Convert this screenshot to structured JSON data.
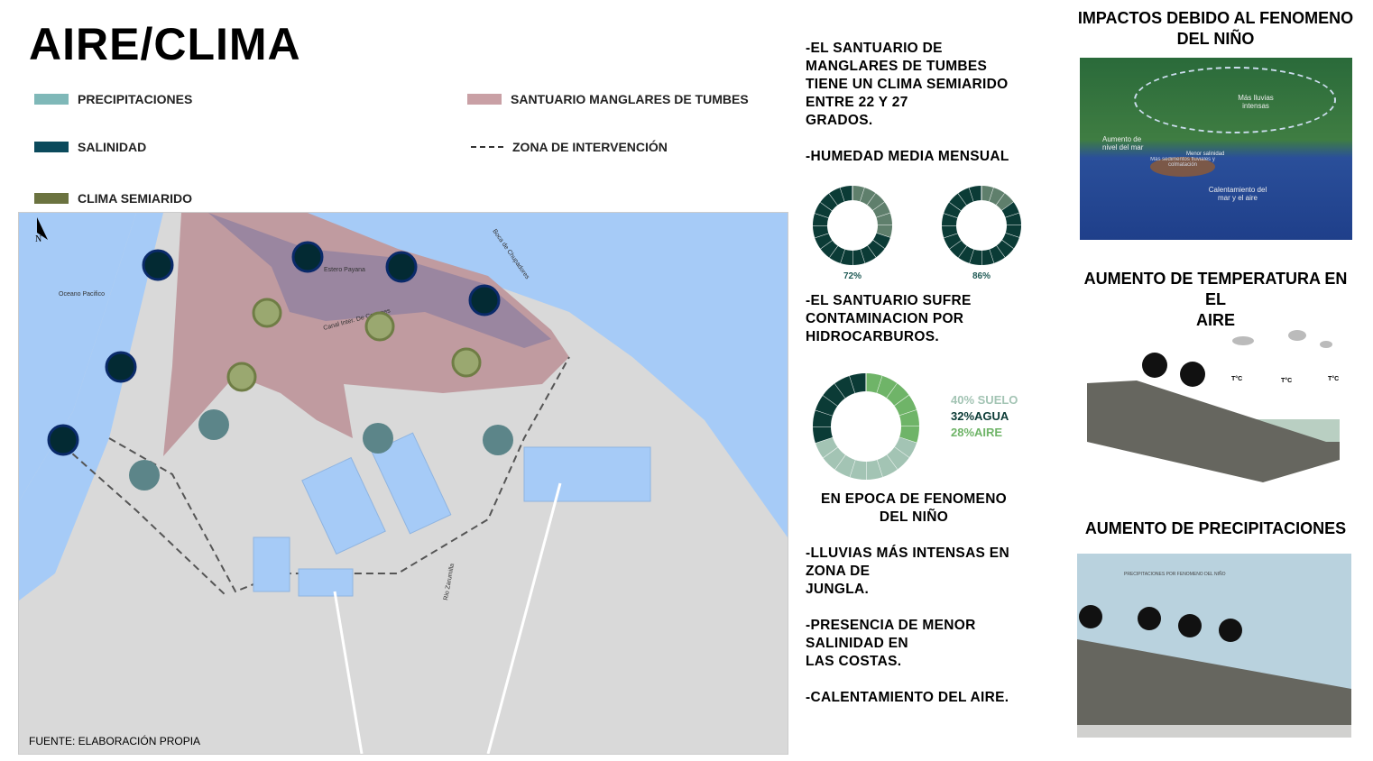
{
  "title": "AIRE/CLIMA",
  "legend": [
    {
      "label": "PRECIPITACIONES",
      "color": "#7fb8b8"
    },
    {
      "label": "SALINIDAD",
      "color": "#0b4a5c"
    },
    {
      "label": "CLIMA SEMIARIDO",
      "color": "#6b7340"
    },
    {
      "label": "SANTUARIO MANGLARES DE TUMBES",
      "color": "#c9a0a5"
    },
    {
      "label": "ZONA DE INTERVENCIÓN"
    }
  ],
  "map": {
    "north": "N",
    "labels": [
      "Oceano Pacifico",
      "Estero Payana",
      "Canal Inter. De Conones",
      "Boca de Chupadores",
      "Rio Zarumilla"
    ],
    "source": "FUENTE: ELABORACIÓN PROPIA",
    "colors": {
      "water": "#a6cbf7",
      "land": "#d9d9d9",
      "sanctuary": "#c09ba0",
      "channel": "#8e7fa0"
    }
  },
  "middle": {
    "text1": "-EL SANTUARIO DE\nMANGLARES DE TUMBES\nTIENE UN CLIMA SEMIARIDO\nENTRE 22 Y 27\nGRADOS.",
    "text2": "-HUMEDAD MEDIA MENSUAL",
    "humidity": [
      {
        "value": 72,
        "label": "72%"
      },
      {
        "value": 86,
        "label": "86%"
      }
    ],
    "text3": "-EL SANTUARIO SUFRE\nCONTAMINACION POR\nHIDROCARBUROS.",
    "pollution": [
      {
        "label": "40% SUELO",
        "value": 40,
        "color": "#a3c4b4"
      },
      {
        "label": "32%AGUA",
        "value": 32,
        "color": "#0b3b36"
      },
      {
        "label": "28%AIRE",
        "value": 28,
        "color": "#6fb468"
      }
    ],
    "subhead": "EN EPOCA DE FENOMENO\nDEL NIÑO",
    "text4": "-LLUVIAS MÁS INTENSAS EN\nZONA DE\nJUNGLA.",
    "text5": "-PRESENCIA DE MENOR\nSALINIDAD EN\nLAS COSTAS.",
    "text6": "-CALENTAMIENTO DEL AIRE."
  },
  "right": {
    "h1": "IMPACTOS DEBIDO AL FENOMENO\nDEL NIÑO",
    "img1_labels": [
      "Más lluvias intensas",
      "Aumento de nivel del mar",
      "Calentamiento del mar y el aire",
      "Menor salinidad",
      "Más sedimentos fluviales y colmatación"
    ],
    "h2": "AUMENTO DE TEMPERATURA EN EL\nAIRE",
    "temp_label": "T°C",
    "h3": "AUMENTO DE PRECIPITACIONES",
    "img3_caption": "PRECIPITACIONES POR FENOMENO DEL NIÑO"
  }
}
